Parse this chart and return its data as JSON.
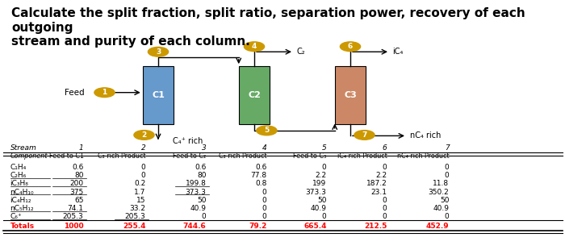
{
  "title": "Calculate the split fraction, split ratio, separation power, recovery of each outgoing\nstream and purity of each column.",
  "title_fontsize": 11,
  "diagram": {
    "feed_label": "Feed",
    "feed_num": "1",
    "columns": [
      "C1",
      "C2",
      "C3"
    ],
    "col_colors": [
      "#6699cc",
      "#66aa66",
      "#cc8866"
    ],
    "stream_labels": [
      "3",
      "4  C₂",
      "6  iC₄"
    ],
    "bottom_labels": [
      "2",
      "5",
      "7"
    ],
    "bottom_text": [
      "C₄⁺ rich",
      "",
      "nC₄ rich"
    ]
  },
  "table": {
    "stream_header": [
      "Stream",
      "1",
      "2",
      "3",
      "4",
      "5",
      "6",
      "7"
    ],
    "component_header": [
      "Component",
      "Feed to C1",
      "C₂ rich Product",
      "Feed to C₂",
      "C₂ rich Product",
      "Feed to C₃",
      "iC₄ rich Product",
      "nC₄ rich Product"
    ],
    "rows": [
      [
        "C₁H₄",
        "0.6",
        "0",
        "0.6",
        "0.6",
        "0",
        "0",
        "0"
      ],
      [
        "C₂H₆",
        "80",
        "0",
        "80",
        "77.8",
        "2.2",
        "2.2",
        "0"
      ],
      [
        "iC₃H₈",
        "200",
        "0.2",
        "199.8",
        "0.8",
        "199",
        "187.2",
        "11.8"
      ],
      [
        "nC₄H₁₀",
        "375",
        "1.7",
        "373.3",
        "0",
        "373.3",
        "23.1",
        "350.2"
      ],
      [
        "iC₄H₁₂",
        "65",
        "15",
        "50",
        "0",
        "50",
        "0",
        "50"
      ],
      [
        "nC₅H₁₂",
        "74.1",
        "33.2",
        "40.9",
        "0",
        "40.9",
        "0",
        "40.9"
      ],
      [
        "C₆⁺",
        "205.3",
        "205.3",
        "0",
        "0",
        "0",
        "0",
        "0"
      ],
      [
        "Totals",
        "1000",
        "255.4",
        "744.6",
        "79.2",
        "665.4",
        "212.5",
        "452.9"
      ]
    ],
    "underline_rows": [
      0,
      1,
      2,
      3,
      4,
      5,
      6
    ],
    "bold_rows": [
      7
    ],
    "red_rows": [
      7
    ],
    "underline_cols_in_rows": {
      "1": [
        1
      ],
      "2": [
        1,
        2
      ],
      "3": [
        1,
        2,
        3
      ],
      "6": [
        1,
        2,
        3,
        4,
        5,
        6,
        7
      ]
    }
  }
}
